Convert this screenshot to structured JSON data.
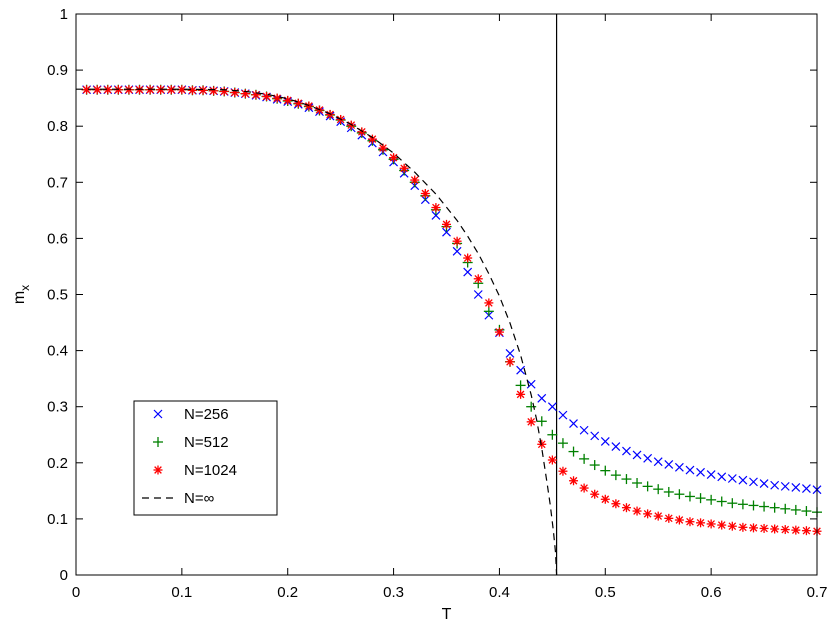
{
  "chart_data": {
    "type": "scatter",
    "title": "",
    "xlabel": "T",
    "ylabel": "m",
    "ylabel_subscript": "x",
    "xlim": [
      0,
      0.7
    ],
    "ylim": [
      0,
      1
    ],
    "xticks": [
      "0",
      "0.1",
      "0.2",
      "0.3",
      "0.4",
      "0.5",
      "0.6",
      "0.7"
    ],
    "yticks": [
      "0",
      "0.1",
      "0.2",
      "0.3",
      "0.4",
      "0.5",
      "0.6",
      "0.7",
      "0.8",
      "0.9",
      "1"
    ],
    "grid": false,
    "legend_position": "lower-left",
    "vertical_line": {
      "x": 0.454,
      "color": "#000000"
    },
    "series": [
      {
        "name": "N=256",
        "marker": "x",
        "color": "#0000ff",
        "x": [
          0.01,
          0.02,
          0.03,
          0.04,
          0.05,
          0.06,
          0.07,
          0.08,
          0.09,
          0.1,
          0.11,
          0.12,
          0.13,
          0.14,
          0.15,
          0.16,
          0.17,
          0.18,
          0.19,
          0.2,
          0.21,
          0.22,
          0.23,
          0.24,
          0.25,
          0.26,
          0.27,
          0.28,
          0.29,
          0.3,
          0.31,
          0.32,
          0.33,
          0.34,
          0.35,
          0.36,
          0.37,
          0.38,
          0.39,
          0.4,
          0.41,
          0.42,
          0.43,
          0.44,
          0.45,
          0.46,
          0.47,
          0.48,
          0.49,
          0.5,
          0.51,
          0.52,
          0.53,
          0.54,
          0.55,
          0.56,
          0.57,
          0.58,
          0.59,
          0.6,
          0.61,
          0.62,
          0.63,
          0.64,
          0.65,
          0.66,
          0.67,
          0.68,
          0.69,
          0.7
        ],
        "y": [
          0.865,
          0.865,
          0.865,
          0.865,
          0.865,
          0.865,
          0.865,
          0.865,
          0.865,
          0.865,
          0.864,
          0.864,
          0.863,
          0.862,
          0.86,
          0.858,
          0.855,
          0.852,
          0.848,
          0.844,
          0.839,
          0.833,
          0.826,
          0.818,
          0.808,
          0.797,
          0.784,
          0.77,
          0.754,
          0.736,
          0.716,
          0.694,
          0.669,
          0.641,
          0.611,
          0.577,
          0.54,
          0.5,
          0.463,
          0.432,
          0.395,
          0.365,
          0.34,
          0.315,
          0.3,
          0.285,
          0.27,
          0.258,
          0.248,
          0.238,
          0.229,
          0.221,
          0.214,
          0.208,
          0.202,
          0.197,
          0.192,
          0.187,
          0.183,
          0.179,
          0.175,
          0.172,
          0.169,
          0.166,
          0.163,
          0.16,
          0.158,
          0.156,
          0.154,
          0.152
        ]
      },
      {
        "name": "N=512",
        "marker": "+",
        "color": "#008000",
        "x": [
          0.01,
          0.02,
          0.03,
          0.04,
          0.05,
          0.06,
          0.07,
          0.08,
          0.09,
          0.1,
          0.11,
          0.12,
          0.13,
          0.14,
          0.15,
          0.16,
          0.17,
          0.18,
          0.19,
          0.2,
          0.21,
          0.22,
          0.23,
          0.24,
          0.25,
          0.26,
          0.27,
          0.28,
          0.29,
          0.3,
          0.31,
          0.32,
          0.33,
          0.34,
          0.35,
          0.36,
          0.37,
          0.38,
          0.39,
          0.4,
          0.41,
          0.42,
          0.43,
          0.44,
          0.45,
          0.46,
          0.47,
          0.48,
          0.49,
          0.5,
          0.51,
          0.52,
          0.53,
          0.54,
          0.55,
          0.56,
          0.57,
          0.58,
          0.59,
          0.6,
          0.61,
          0.62,
          0.63,
          0.64,
          0.65,
          0.66,
          0.67,
          0.68,
          0.69,
          0.7
        ],
        "y": [
          0.865,
          0.865,
          0.865,
          0.865,
          0.865,
          0.865,
          0.865,
          0.865,
          0.865,
          0.865,
          0.864,
          0.864,
          0.863,
          0.862,
          0.86,
          0.858,
          0.856,
          0.853,
          0.849,
          0.845,
          0.84,
          0.835,
          0.828,
          0.82,
          0.811,
          0.8,
          0.788,
          0.774,
          0.758,
          0.741,
          0.721,
          0.7,
          0.676,
          0.651,
          0.621,
          0.591,
          0.557,
          0.52,
          0.47,
          0.437,
          0.38,
          0.338,
          0.3,
          0.274,
          0.25,
          0.235,
          0.22,
          0.207,
          0.196,
          0.186,
          0.178,
          0.171,
          0.164,
          0.158,
          0.153,
          0.148,
          0.144,
          0.14,
          0.137,
          0.134,
          0.131,
          0.128,
          0.126,
          0.124,
          0.122,
          0.12,
          0.118,
          0.116,
          0.114,
          0.112
        ]
      },
      {
        "name": "N=1024",
        "marker": "*",
        "color": "#ff0000",
        "x": [
          0.01,
          0.02,
          0.03,
          0.04,
          0.05,
          0.06,
          0.07,
          0.08,
          0.09,
          0.1,
          0.11,
          0.12,
          0.13,
          0.14,
          0.15,
          0.16,
          0.17,
          0.18,
          0.19,
          0.2,
          0.21,
          0.22,
          0.23,
          0.24,
          0.25,
          0.26,
          0.27,
          0.28,
          0.29,
          0.3,
          0.31,
          0.32,
          0.33,
          0.34,
          0.35,
          0.36,
          0.37,
          0.38,
          0.39,
          0.4,
          0.41,
          0.42,
          0.43,
          0.44,
          0.45,
          0.46,
          0.47,
          0.48,
          0.49,
          0.5,
          0.51,
          0.52,
          0.53,
          0.54,
          0.55,
          0.56,
          0.57,
          0.58,
          0.59,
          0.6,
          0.61,
          0.62,
          0.63,
          0.64,
          0.65,
          0.66,
          0.67,
          0.68,
          0.69,
          0.7
        ],
        "y": [
          0.865,
          0.865,
          0.865,
          0.865,
          0.865,
          0.865,
          0.865,
          0.865,
          0.865,
          0.865,
          0.864,
          0.864,
          0.863,
          0.862,
          0.86,
          0.858,
          0.856,
          0.853,
          0.85,
          0.846,
          0.841,
          0.836,
          0.829,
          0.821,
          0.812,
          0.802,
          0.79,
          0.777,
          0.761,
          0.744,
          0.725,
          0.704,
          0.68,
          0.655,
          0.625,
          0.595,
          0.565,
          0.528,
          0.485,
          0.433,
          0.38,
          0.322,
          0.273,
          0.233,
          0.205,
          0.185,
          0.168,
          0.155,
          0.144,
          0.135,
          0.127,
          0.12,
          0.114,
          0.109,
          0.105,
          0.101,
          0.098,
          0.095,
          0.093,
          0.091,
          0.089,
          0.087,
          0.085,
          0.084,
          0.083,
          0.082,
          0.081,
          0.08,
          0.079,
          0.078
        ]
      },
      {
        "name": "N=∞",
        "marker": "dashed-line",
        "color": "#000000",
        "x": [
          0.0,
          0.05,
          0.1,
          0.14,
          0.16,
          0.18,
          0.2,
          0.22,
          0.24,
          0.26,
          0.28,
          0.3,
          0.32,
          0.34,
          0.36,
          0.37,
          0.38,
          0.39,
          0.4,
          0.41,
          0.42,
          0.43,
          0.435,
          0.44,
          0.445,
          0.448,
          0.451,
          0.453,
          0.454
        ],
        "y": [
          0.866,
          0.866,
          0.866,
          0.865,
          0.862,
          0.857,
          0.849,
          0.837,
          0.822,
          0.803,
          0.78,
          0.752,
          0.718,
          0.679,
          0.632,
          0.604,
          0.573,
          0.537,
          0.497,
          0.449,
          0.392,
          0.321,
          0.278,
          0.226,
          0.164,
          0.125,
          0.078,
          0.04,
          0.0
        ]
      }
    ]
  }
}
